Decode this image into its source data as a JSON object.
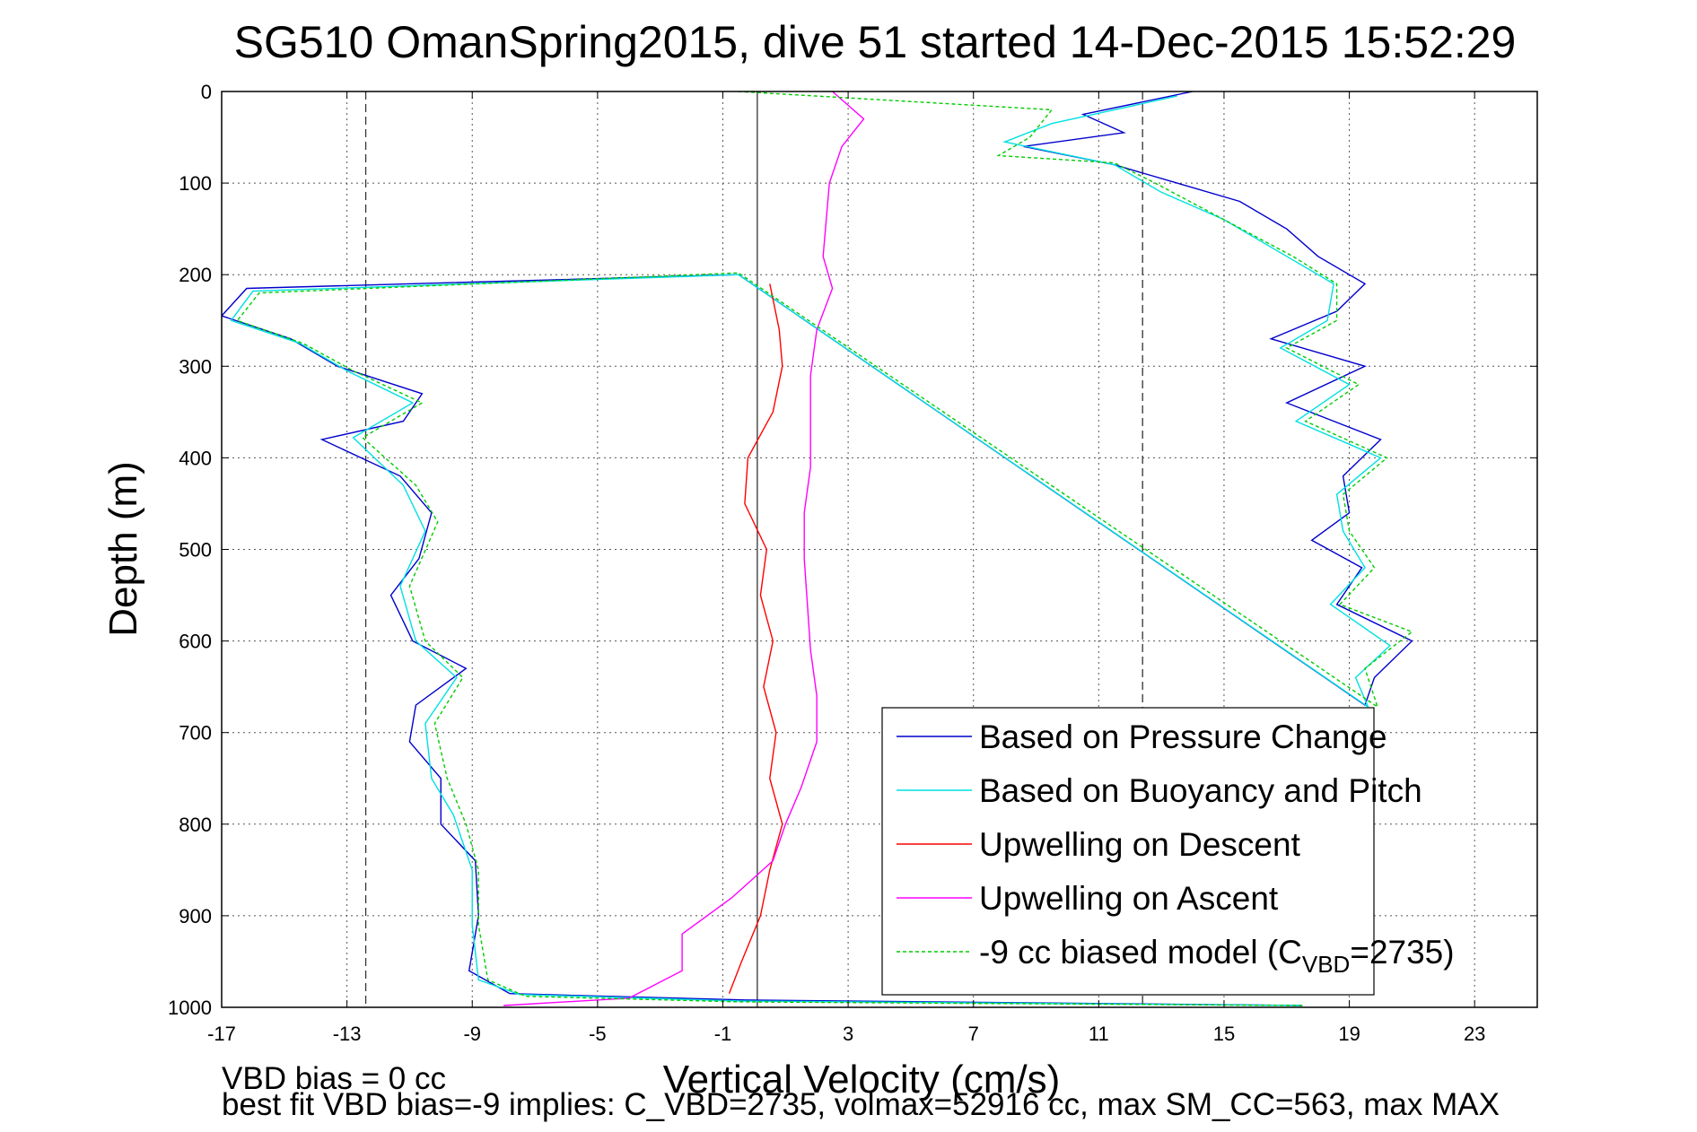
{
  "chart_data": {
    "type": "line",
    "title": "SG510 OmanSpring2015, dive 51 started 14-Dec-2015 15:52:29",
    "xlabel": "Vertical Velocity (cm/s)",
    "ylabel": "Depth (m)",
    "xlim": [
      -17,
      25
    ],
    "ylim": [
      0,
      1000
    ],
    "y_reversed": true,
    "xticks": [
      "-17",
      "-13",
      "-9",
      "-5",
      "-1",
      "3",
      "7",
      "11",
      "15",
      "19",
      "23"
    ],
    "yticks": [
      "0",
      "100",
      "200",
      "300",
      "400",
      "500",
      "600",
      "700",
      "800",
      "900",
      "1000"
    ],
    "grid": true,
    "legend_position": "bottom-right",
    "reference_lines": [
      {
        "x": 0.1,
        "style": "solid"
      },
      {
        "x": -12.4,
        "style": "dashed"
      },
      {
        "x": 12.4,
        "style": "dashed"
      }
    ],
    "series": [
      {
        "name": "Based on Pressure Change",
        "color": "#0000cc",
        "style": "solid",
        "points": [
          [
            14.0,
            0
          ],
          [
            10.5,
            25
          ],
          [
            11.8,
            45
          ],
          [
            8.6,
            60
          ],
          [
            11.5,
            80
          ],
          [
            13.5,
            100
          ],
          [
            15.5,
            120
          ],
          [
            17.0,
            150
          ],
          [
            18.0,
            180
          ],
          [
            19.5,
            210
          ],
          [
            18.6,
            240
          ],
          [
            16.5,
            270
          ],
          [
            19.5,
            300
          ],
          [
            17.0,
            340
          ],
          [
            20.0,
            380
          ],
          [
            18.8,
            420
          ],
          [
            19.0,
            460
          ],
          [
            17.8,
            490
          ],
          [
            19.4,
            520
          ],
          [
            18.6,
            560
          ],
          [
            21.0,
            600
          ],
          [
            19.8,
            640
          ],
          [
            19.5,
            670
          ],
          [
            -0.5,
            200
          ],
          [
            -16.2,
            215
          ],
          [
            -17.0,
            245
          ],
          [
            -14.8,
            270
          ],
          [
            -13.3,
            300
          ],
          [
            -10.6,
            330
          ],
          [
            -11.2,
            360
          ],
          [
            -13.8,
            380
          ],
          [
            -11.3,
            420
          ],
          [
            -10.3,
            460
          ],
          [
            -10.7,
            510
          ],
          [
            -11.6,
            550
          ],
          [
            -10.9,
            600
          ],
          [
            -9.2,
            630
          ],
          [
            -10.8,
            670
          ],
          [
            -11.0,
            710
          ],
          [
            -10.0,
            750
          ],
          [
            -10.0,
            800
          ],
          [
            -8.9,
            840
          ],
          [
            -8.8,
            900
          ],
          [
            -9.1,
            960
          ],
          [
            -7.8,
            985
          ],
          [
            -0.3,
            992
          ],
          [
            17.5,
            998
          ]
        ]
      },
      {
        "name": "Based on Buoyancy and Pitch",
        "color": "#00e0e0",
        "style": "solid",
        "points": [
          [
            13.5,
            5
          ],
          [
            9.5,
            35
          ],
          [
            8.0,
            55
          ],
          [
            11.5,
            80
          ],
          [
            13.0,
            110
          ],
          [
            15.0,
            140
          ],
          [
            17.0,
            180
          ],
          [
            18.5,
            210
          ],
          [
            18.3,
            250
          ],
          [
            16.8,
            280
          ],
          [
            19.0,
            320
          ],
          [
            17.3,
            360
          ],
          [
            20.0,
            400
          ],
          [
            18.6,
            440
          ],
          [
            18.8,
            480
          ],
          [
            19.5,
            520
          ],
          [
            18.4,
            560
          ],
          [
            20.3,
            605
          ],
          [
            19.2,
            640
          ],
          [
            19.6,
            672
          ],
          [
            -0.5,
            200
          ],
          [
            -16.0,
            218
          ],
          [
            -16.7,
            250
          ],
          [
            -14.5,
            275
          ],
          [
            -13.0,
            305
          ],
          [
            -10.9,
            340
          ],
          [
            -12.8,
            378
          ],
          [
            -11.2,
            430
          ],
          [
            -10.5,
            480
          ],
          [
            -11.3,
            540
          ],
          [
            -10.8,
            600
          ],
          [
            -9.5,
            640
          ],
          [
            -10.5,
            690
          ],
          [
            -10.3,
            750
          ],
          [
            -9.6,
            790
          ],
          [
            -9.0,
            850
          ],
          [
            -9.0,
            910
          ],
          [
            -8.8,
            970
          ],
          [
            -7.5,
            986
          ],
          [
            -0.5,
            993
          ],
          [
            17.5,
            998
          ]
        ]
      },
      {
        "name": "Upwelling on Descent",
        "color": "#ff0000",
        "style": "solid",
        "points": [
          [
            0.5,
            210
          ],
          [
            0.8,
            260
          ],
          [
            0.9,
            300
          ],
          [
            0.6,
            350
          ],
          [
            -0.2,
            400
          ],
          [
            -0.3,
            450
          ],
          [
            0.4,
            500
          ],
          [
            0.2,
            550
          ],
          [
            0.6,
            600
          ],
          [
            0.3,
            650
          ],
          [
            0.7,
            700
          ],
          [
            0.5,
            750
          ],
          [
            0.9,
            800
          ],
          [
            0.5,
            850
          ],
          [
            0.2,
            900
          ],
          [
            -0.4,
            950
          ],
          [
            -0.8,
            985
          ]
        ]
      },
      {
        "name": "Upwelling on Ascent",
        "color": "#ff00ff",
        "style": "solid",
        "points": [
          [
            2.5,
            0
          ],
          [
            3.5,
            30
          ],
          [
            2.8,
            60
          ],
          [
            2.4,
            100
          ],
          [
            2.3,
            140
          ],
          [
            2.2,
            180
          ],
          [
            2.5,
            215
          ],
          [
            2.0,
            260
          ],
          [
            1.8,
            310
          ],
          [
            1.8,
            360
          ],
          [
            1.8,
            410
          ],
          [
            1.6,
            460
          ],
          [
            1.6,
            510
          ],
          [
            1.7,
            560
          ],
          [
            1.8,
            610
          ],
          [
            2.0,
            660
          ],
          [
            2.0,
            710
          ],
          [
            1.5,
            760
          ],
          [
            1.0,
            800
          ],
          [
            0.6,
            840
          ],
          [
            -0.7,
            880
          ],
          [
            -2.3,
            920
          ],
          [
            -2.3,
            960
          ],
          [
            -4.0,
            990
          ],
          [
            -8.0,
            998
          ]
        ]
      },
      {
        "name": "-9 cc biased model (C",
        "name_subscript": "VBD",
        "name_suffix": "=2735)",
        "color": "#00cc00",
        "style": "dashed",
        "points": [
          [
            -0.5,
            0
          ],
          [
            9.5,
            20
          ],
          [
            8.8,
            50
          ],
          [
            7.8,
            70
          ],
          [
            11.5,
            78
          ],
          [
            12.8,
            100
          ],
          [
            15.0,
            140
          ],
          [
            17.2,
            180
          ],
          [
            18.6,
            210
          ],
          [
            18.6,
            250
          ],
          [
            17.0,
            280
          ],
          [
            19.3,
            320
          ],
          [
            17.6,
            360
          ],
          [
            20.2,
            400
          ],
          [
            18.8,
            440
          ],
          [
            19.0,
            480
          ],
          [
            19.8,
            520
          ],
          [
            18.7,
            560
          ],
          [
            21.0,
            590
          ],
          [
            19.5,
            630
          ],
          [
            19.9,
            672
          ],
          [
            -0.5,
            198
          ],
          [
            -15.8,
            220
          ],
          [
            -16.5,
            250
          ],
          [
            -14.4,
            275
          ],
          [
            -12.8,
            305
          ],
          [
            -10.6,
            340
          ],
          [
            -12.5,
            378
          ],
          [
            -10.8,
            430
          ],
          [
            -10.1,
            470
          ],
          [
            -11.0,
            540
          ],
          [
            -10.5,
            600
          ],
          [
            -9.3,
            640
          ],
          [
            -10.2,
            690
          ],
          [
            -9.8,
            750
          ],
          [
            -9.2,
            800
          ],
          [
            -8.8,
            850
          ],
          [
            -8.8,
            910
          ],
          [
            -8.5,
            970
          ],
          [
            -7.3,
            988
          ],
          [
            -0.5,
            994
          ],
          [
            17.5,
            998
          ]
        ]
      }
    ],
    "annotations": [
      "VBD bias = 0 cc",
      "best fit VBD bias=-9 implies: C_VBD=2735, volmax=52916 cc, max SM_CC=563, max MAX"
    ]
  }
}
